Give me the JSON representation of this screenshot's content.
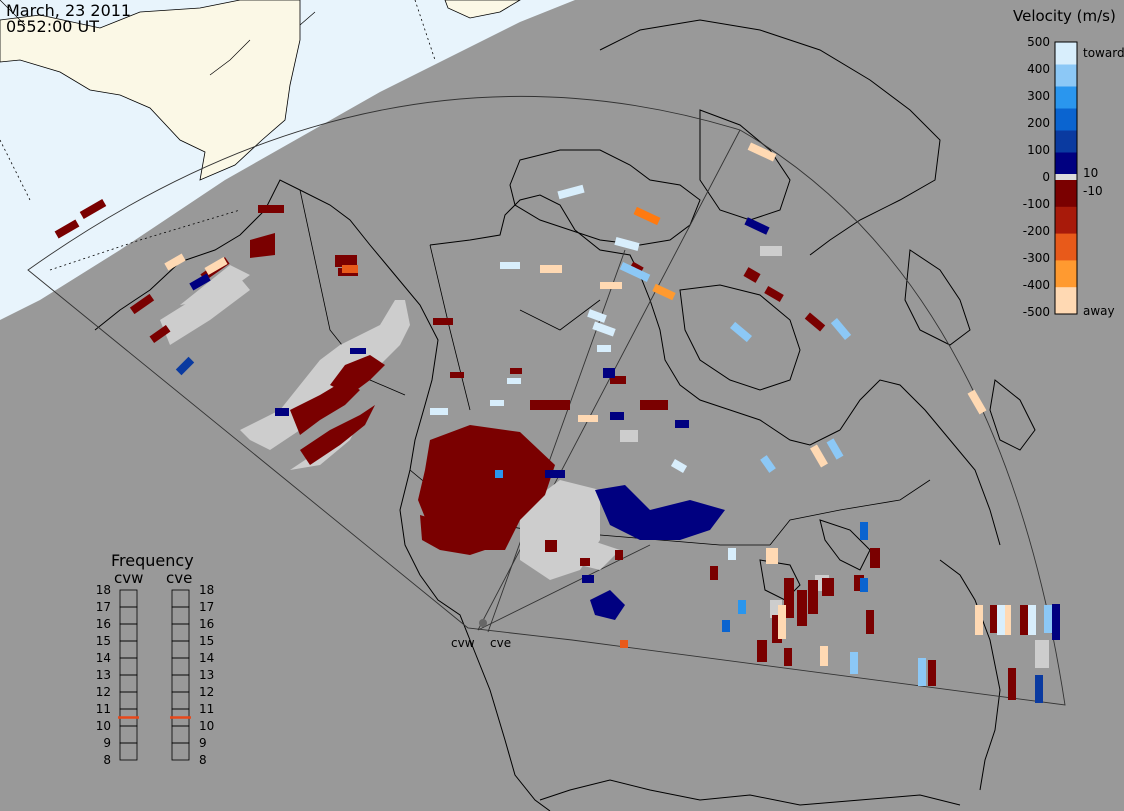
{
  "header": {
    "date": "March, 23 2011",
    "time": "0552:00 UT"
  },
  "colorbar": {
    "title": "Velocity (m/s)",
    "ticks": [
      "500",
      "400",
      "300",
      "200",
      "100",
      "10",
      "0",
      "-10",
      "-100",
      "-200",
      "-300",
      "-400",
      "-500"
    ],
    "toward_label": "toward",
    "away_label": "away",
    "colors": [
      "#ffd9b3",
      "#ff9a30",
      "#e85a1a",
      "#a81a0a",
      "#7a0000",
      "#dcdcdc",
      "#000080",
      "#0a3aa0",
      "#0a64d0",
      "#2a96ee",
      "#8cc8f6",
      "#d8eefc"
    ]
  },
  "frequency": {
    "title": "Frequency",
    "radars": [
      "cvw",
      "cve"
    ],
    "levels": [
      "18",
      "17",
      "16",
      "15",
      "14",
      "13",
      "12",
      "11",
      "10",
      "9",
      "8"
    ],
    "cvw_mhz": 10.5,
    "cve_mhz": 10.5,
    "marker_color": "#e8481a"
  },
  "radar_sites": {
    "labels": [
      "cvw",
      "cve"
    ]
  },
  "map": {
    "ocean_color": "#999999",
    "daylight_land_color": "#fbf8e6",
    "daylight_ocean_color": "#e8f4fc",
    "ground_scatter_color": "#cdcdcd"
  }
}
